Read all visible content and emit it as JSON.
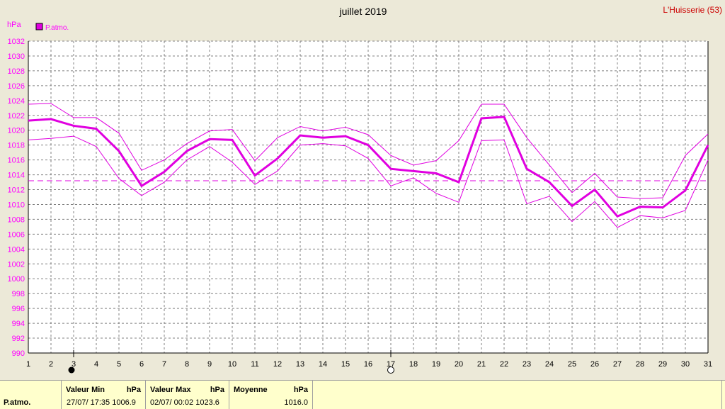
{
  "chart_data": {
    "type": "line",
    "title": "juillet 2019",
    "station": "L'Huisserie (53)",
    "unit_label": "hPa",
    "legend": "P.atmo.",
    "x": [
      1,
      2,
      3,
      4,
      5,
      6,
      7,
      8,
      9,
      10,
      11,
      12,
      13,
      14,
      15,
      16,
      17,
      18,
      19,
      20,
      21,
      22,
      23,
      24,
      25,
      26,
      27,
      28,
      29,
      30,
      31
    ],
    "ylim": [
      990,
      1032
    ],
    "y_ticks": [
      990,
      992,
      994,
      996,
      998,
      1000,
      1002,
      1004,
      1006,
      1008,
      1010,
      1012,
      1014,
      1016,
      1018,
      1020,
      1022,
      1024,
      1026,
      1028,
      1030,
      1032
    ],
    "grid": true,
    "legend_position": "top-left",
    "mean_line": 1013.2,
    "series": [
      {
        "role": "mean",
        "values": [
          1021.3,
          1021.5,
          1020.6,
          1020.2,
          1017.2,
          1012.5,
          1014.4,
          1017.2,
          1018.8,
          1018.7,
          1013.9,
          1016.2,
          1019.3,
          1019.0,
          1019.2,
          1018.0,
          1014.8,
          1014.5,
          1014.2,
          1013.0,
          1021.6,
          1021.8,
          1014.8,
          1013.0,
          1009.8,
          1012.0,
          1008.4,
          1009.7,
          1009.6,
          1011.9,
          1018.0
        ]
      },
      {
        "role": "max",
        "values": [
          1023.5,
          1023.6,
          1021.7,
          1021.7,
          1019.6,
          1014.6,
          1016.0,
          1018.2,
          1019.9,
          1020.1,
          1015.9,
          1019.0,
          1020.5,
          1019.9,
          1020.4,
          1019.4,
          1016.6,
          1015.3,
          1015.9,
          1018.6,
          1023.5,
          1023.5,
          1019.0,
          1015.3,
          1011.6,
          1014.2,
          1011.0,
          1010.8,
          1010.9,
          1016.6,
          1019.5
        ]
      },
      {
        "role": "min",
        "values": [
          1018.7,
          1018.9,
          1019.2,
          1017.8,
          1013.5,
          1011.2,
          1013.0,
          1016.0,
          1017.8,
          1015.7,
          1012.7,
          1014.5,
          1018.0,
          1018.2,
          1017.9,
          1016.2,
          1012.5,
          1013.6,
          1011.5,
          1010.3,
          1018.6,
          1018.7,
          1010.1,
          1011.1,
          1007.7,
          1010.4,
          1006.9,
          1008.5,
          1008.2,
          1009.2,
          1016.0
        ]
      }
    ],
    "markers": [
      {
        "day": 3,
        "symbol": "filled-circle"
      },
      {
        "day": 17,
        "symbol": "open-circle"
      }
    ],
    "colors": {
      "line": "#e000e0",
      "axis_text": "#ff00ff",
      "title": "#000000",
      "station": "#cc0000",
      "grid": "#808080"
    }
  },
  "footer": {
    "row_label": "P.atmo.",
    "min_header": "Valeur Min",
    "min_unit": "hPa",
    "min_value": "27/07/  17:35 1006.9",
    "max_header": "Valeur Max",
    "max_unit": "hPa",
    "max_value": "02/07/  00:02 1023.6",
    "mean_header": "Moyenne",
    "mean_unit": "hPa",
    "mean_value": "1016.0"
  }
}
